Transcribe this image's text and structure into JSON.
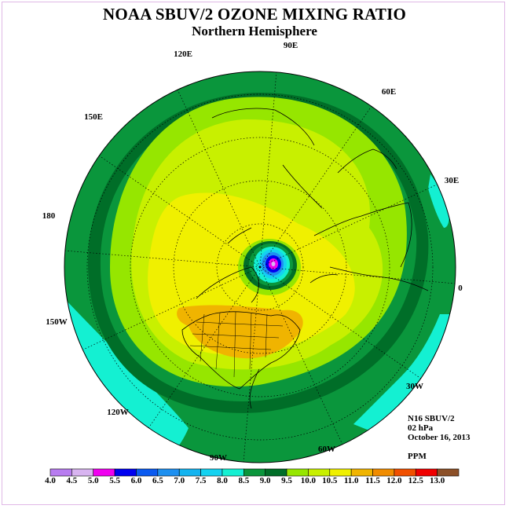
{
  "header": {
    "title": "NOAA SBUV/2 OZONE MIXING RATIO",
    "subtitle": "Northern Hemisphere"
  },
  "longitude_labels": [
    "90E",
    "60E",
    "30E",
    "0",
    "30W",
    "60W",
    "90W",
    "120W",
    "150W",
    "180",
    "150E",
    "120E"
  ],
  "info": {
    "satellite": "N16 SBUV/2",
    "level": "02 hPa",
    "date": "October 16, 2013",
    "units": "PPM"
  },
  "colorbar": {
    "ticks": [
      "4.0",
      "4.5",
      "5.0",
      "5.5",
      "6.0",
      "6.5",
      "7.0",
      "7.5",
      "8.0",
      "8.5",
      "9.0",
      "9.5",
      "10.0",
      "10.5",
      "11.0",
      "11.5",
      "12.0",
      "12.5",
      "13.0"
    ],
    "colors": [
      "#b87cf0",
      "#d8b4f0",
      "#f000f0",
      "#0000f0",
      "#0a5af0",
      "#1e90f0",
      "#14b4f0",
      "#14d2f0",
      "#14f0d2",
      "#0a963c",
      "#006e28",
      "#96e600",
      "#c8f000",
      "#f0f000",
      "#f0b400",
      "#f08c00",
      "#f05000",
      "#f00000",
      "#8c5028"
    ]
  }
}
